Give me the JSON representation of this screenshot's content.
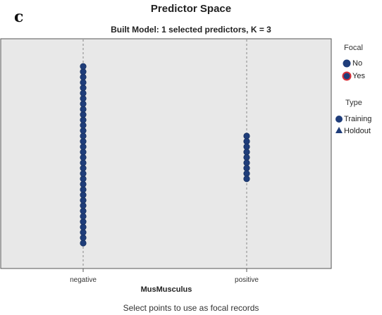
{
  "panel_label": "c",
  "chart_data": {
    "type": "scatter",
    "title": "Predictor Space",
    "subtitle": "Built Model: 1 selected predictors, K = 3",
    "xlabel": "MusMusculus",
    "ylabel": "",
    "categories": [
      "negative",
      "positive"
    ],
    "grid": "vertical dashed line at each category",
    "series": [
      {
        "name": "Training",
        "focal": "No",
        "marker": "circle",
        "color": "#1f3d7a",
        "points": [
          {
            "x": "negative",
            "count": 34
          },
          {
            "x": "positive",
            "count": 9
          }
        ]
      }
    ],
    "legend": {
      "placement": "right",
      "groups": [
        {
          "title": "Focal",
          "items": [
            {
              "label": "No",
              "marker": "circle",
              "fill": "#1f3d7a",
              "stroke": "#1f3d7a"
            },
            {
              "label": "Yes",
              "marker": "circle",
              "fill": "#1f3d7a",
              "stroke": "#d8303a"
            }
          ]
        },
        {
          "title": "Type",
          "items": [
            {
              "label": "Training",
              "marker": "circle",
              "fill": "#1f3d7a"
            },
            {
              "label": "Holdout",
              "marker": "triangle",
              "fill": "#1f3d7a"
            }
          ]
        }
      ]
    }
  },
  "footer_text": "Select points to use as focal records",
  "colors": {
    "plot_background": "#e8e8e8",
    "plot_border": "#555555",
    "point": "#1f3d7a",
    "point_dark": "#16305f",
    "focal_ring": "#d8303a",
    "gridline": "#888888"
  }
}
